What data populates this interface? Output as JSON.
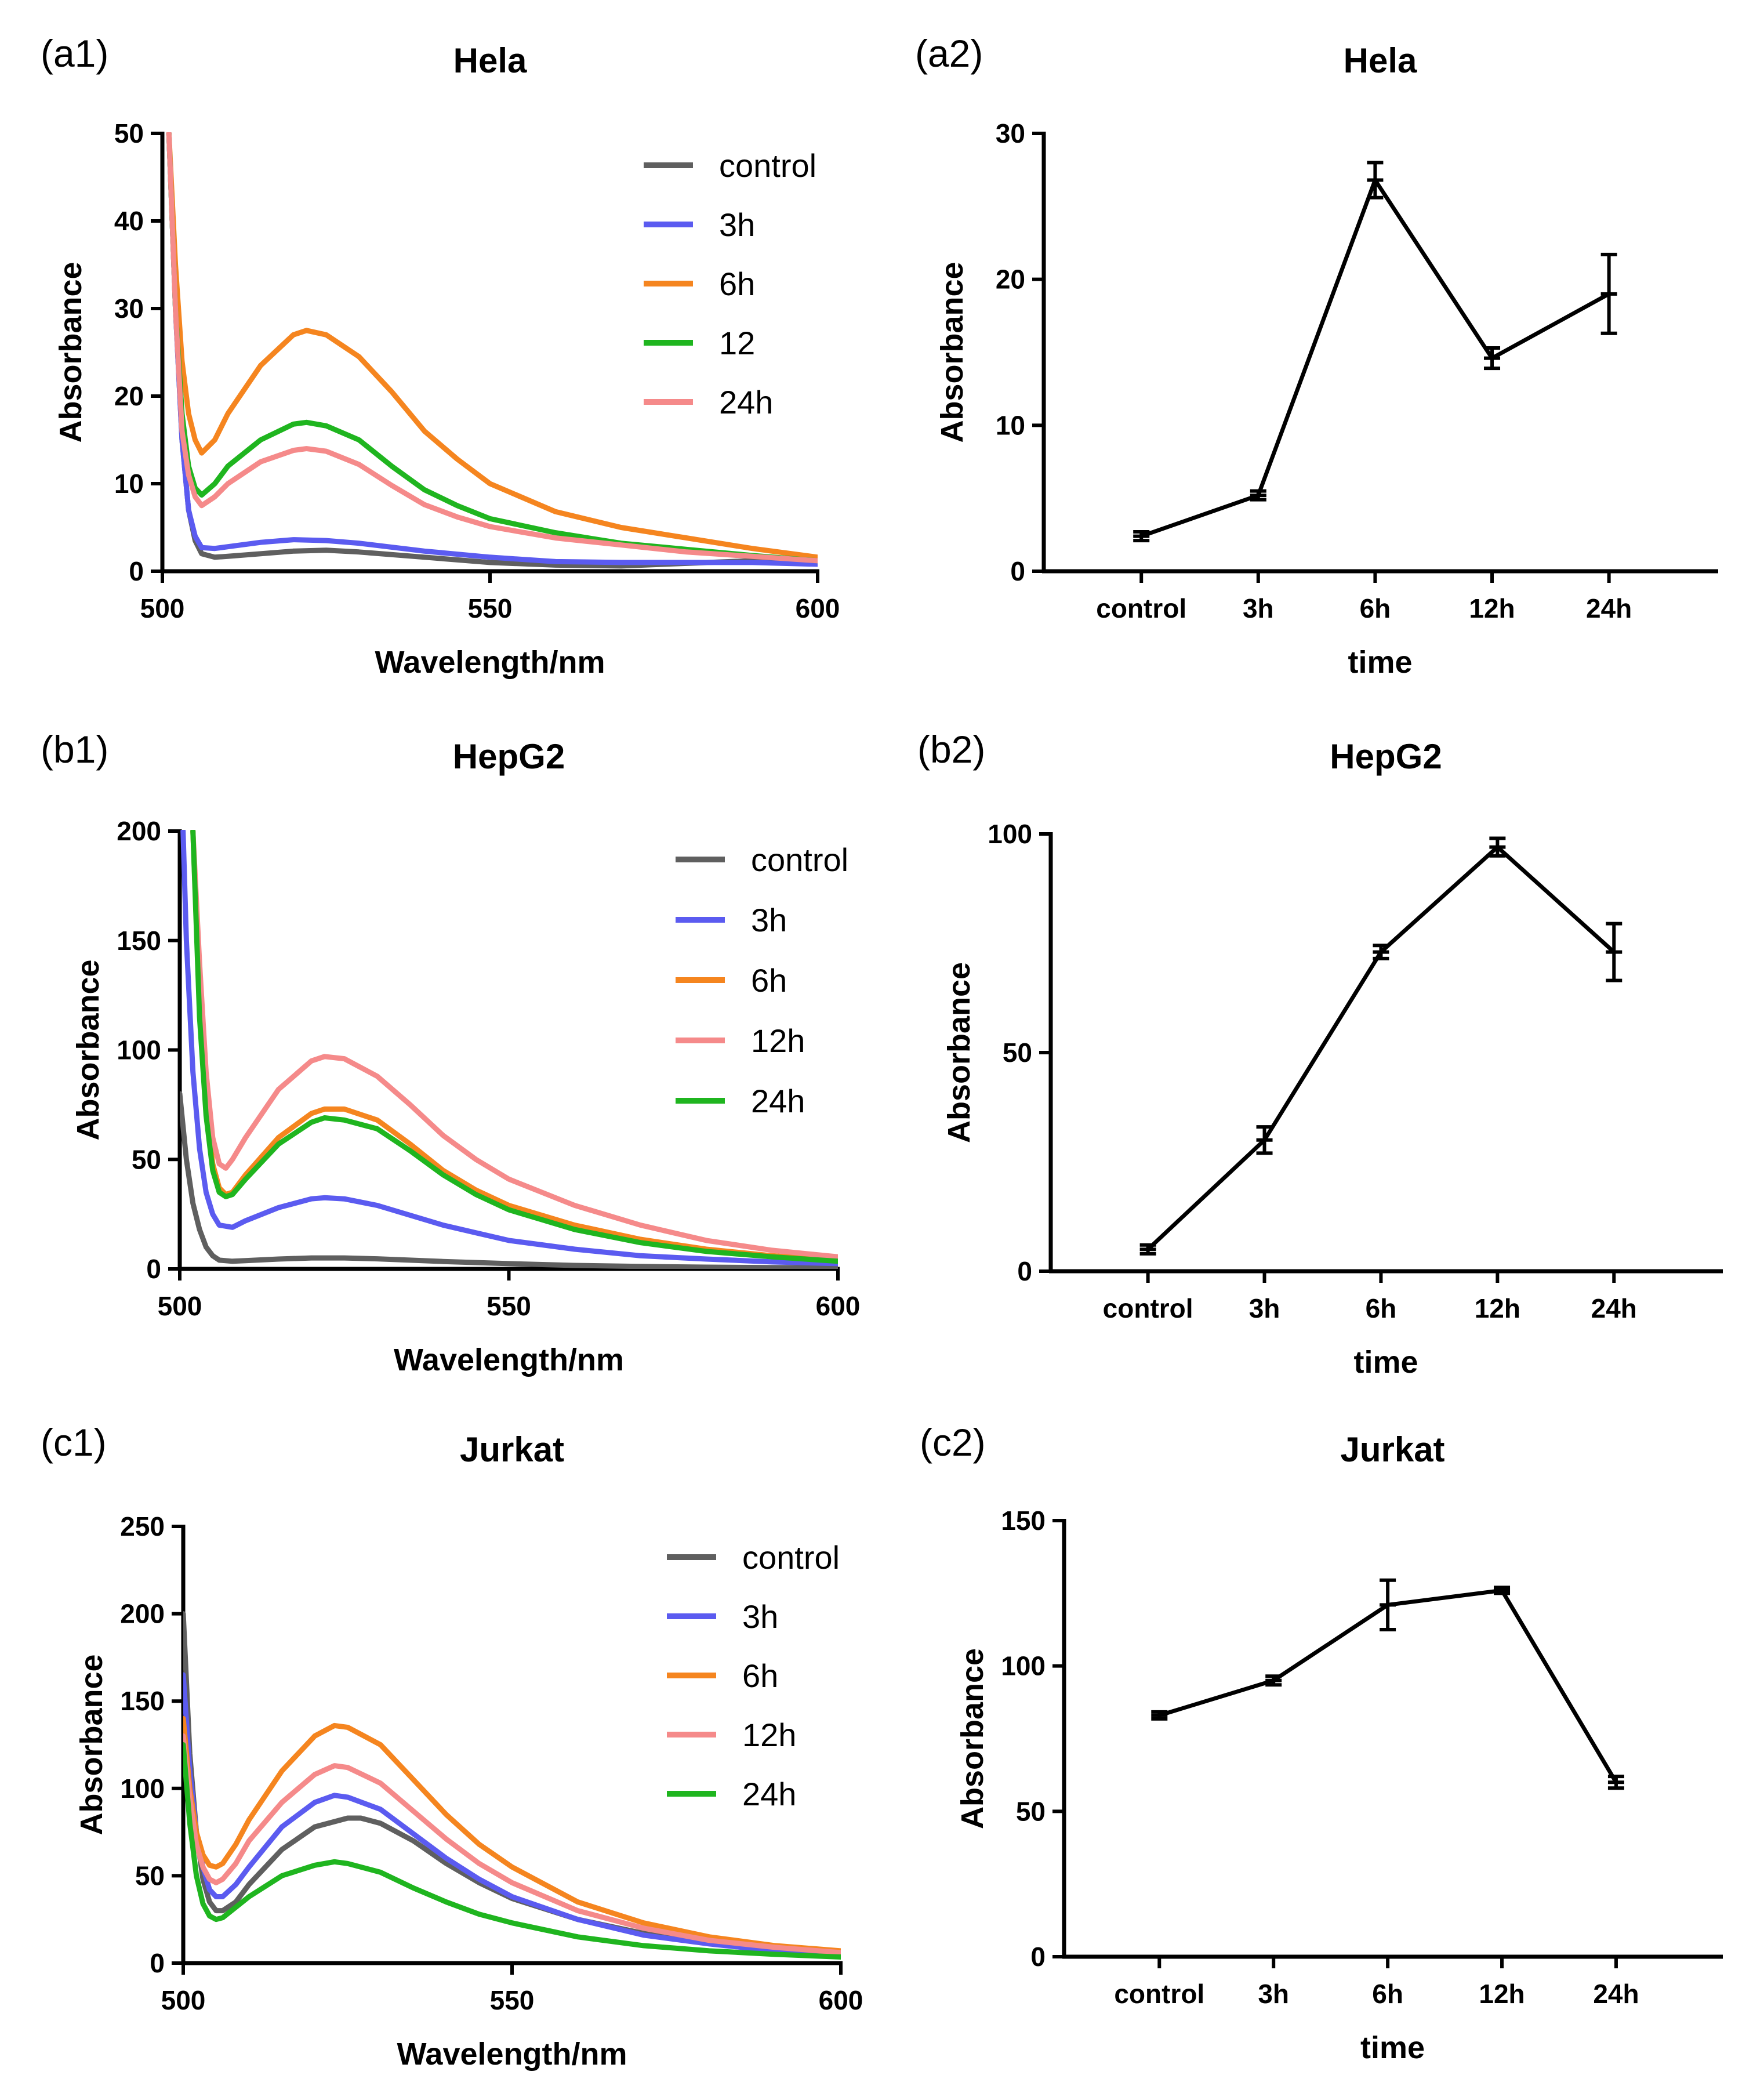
{
  "chart_data": [
    {
      "id": "a1",
      "panel_label": "(a1)",
      "type": "line",
      "title": "Hela",
      "xlabel": "Wavelength/nm",
      "ylabel": "Absorbance",
      "xlim": [
        500,
        600
      ],
      "ylim": [
        0,
        50
      ],
      "x_ticks": [
        500,
        550,
        600
      ],
      "y_ticks": [
        0,
        10,
        20,
        30,
        40,
        50
      ],
      "legend_position": "top-right",
      "series": [
        {
          "name": "control",
          "color": "#5f5f5f",
          "x": [
            501,
            502,
            503,
            504,
            505,
            506,
            508,
            510,
            515,
            520,
            525,
            530,
            540,
            550,
            560,
            570,
            580,
            590,
            600
          ],
          "y": [
            50,
            30,
            15,
            7,
            3.5,
            2,
            1.6,
            1.7,
            2,
            2.3,
            2.4,
            2.2,
            1.6,
            1.0,
            0.7,
            0.6,
            0.9,
            1.2,
            0.9
          ]
        },
        {
          "name": "3h",
          "color": "#5b5bf0",
          "x": [
            501,
            502,
            503,
            504,
            505,
            506,
            508,
            510,
            515,
            520,
            525,
            530,
            540,
            550,
            560,
            570,
            580,
            590,
            600
          ],
          "y": [
            50,
            30,
            15,
            7,
            4,
            2.7,
            2.6,
            2.8,
            3.3,
            3.6,
            3.5,
            3.2,
            2.3,
            1.6,
            1.1,
            1.0,
            1.0,
            1.0,
            0.8
          ]
        },
        {
          "name": "6h",
          "color": "#f5851f",
          "x": [
            501,
            502,
            503,
            504,
            505,
            506,
            508,
            510,
            515,
            520,
            522,
            525,
            530,
            535,
            540,
            545,
            550,
            560,
            570,
            580,
            590,
            600
          ],
          "y": [
            50,
            35,
            24,
            18,
            15,
            13.5,
            15,
            18,
            23.5,
            27,
            27.5,
            27,
            24.5,
            20.5,
            16,
            12.8,
            10,
            6.8,
            5,
            3.8,
            2.6,
            1.6
          ]
        },
        {
          "name": "12",
          "color": "#1fb51f",
          "x": [
            501,
            502,
            503,
            504,
            505,
            506,
            508,
            510,
            515,
            520,
            522,
            525,
            530,
            535,
            540,
            545,
            550,
            560,
            570,
            580,
            590,
            600
          ],
          "y": [
            50,
            30,
            18,
            12,
            9.5,
            8.7,
            10,
            12,
            15,
            16.8,
            17,
            16.6,
            15,
            12,
            9.3,
            7.5,
            6,
            4.4,
            3.2,
            2.5,
            1.8,
            1.2
          ]
        },
        {
          "name": "24h",
          "color": "#f58a8a",
          "x": [
            501,
            502,
            503,
            504,
            505,
            506,
            508,
            510,
            515,
            520,
            522,
            525,
            530,
            535,
            540,
            545,
            550,
            560,
            570,
            580,
            590,
            600
          ],
          "y": [
            50,
            30,
            16,
            11,
            8.5,
            7.5,
            8.5,
            10,
            12.5,
            13.8,
            14,
            13.7,
            12.2,
            9.8,
            7.6,
            6.2,
            5.1,
            3.8,
            3,
            2.2,
            1.7,
            1.2
          ]
        }
      ]
    },
    {
      "id": "a2",
      "panel_label": "(a2)",
      "type": "line",
      "title": "Hela",
      "xlabel": "time",
      "ylabel": "Absorbance",
      "categories": [
        "control",
        "3h",
        "6h",
        "12h",
        "24h"
      ],
      "ylim": [
        0,
        30
      ],
      "y_ticks": [
        0,
        10,
        20,
        30
      ],
      "values": [
        2.4,
        5.2,
        26.8,
        14.6,
        19.0
      ],
      "errors": [
        0.3,
        0.3,
        1.2,
        0.7,
        2.7
      ],
      "color": "#000000"
    },
    {
      "id": "b1",
      "panel_label": "(b1)",
      "type": "line",
      "title": "HepG2",
      "xlabel": "Wavelength/nm",
      "ylabel": "Absorbance",
      "xlim": [
        500,
        600
      ],
      "ylim": [
        0,
        200
      ],
      "x_ticks": [
        500,
        550,
        600
      ],
      "y_ticks": [
        0,
        50,
        100,
        150,
        200
      ],
      "legend_position": "top-right",
      "series": [
        {
          "name": "control",
          "color": "#5f5f5f",
          "x": [
            500,
            501,
            502,
            503,
            504,
            505,
            506,
            508,
            510,
            515,
            520,
            525,
            530,
            540,
            550,
            560,
            570,
            580,
            590,
            600
          ],
          "y": [
            80,
            50,
            30,
            18,
            10,
            6,
            4,
            3.5,
            3.8,
            4.5,
            5,
            5,
            4.6,
            3.4,
            2.4,
            1.6,
            1.1,
            0.8,
            0.6,
            0.5
          ]
        },
        {
          "name": "3h",
          "color": "#5b5bf0",
          "x": [
            500.5,
            501,
            502,
            503,
            504,
            505,
            506,
            508,
            510,
            515,
            520,
            522,
            525,
            530,
            535,
            540,
            545,
            550,
            560,
            570,
            580,
            590,
            600
          ],
          "y": [
            200,
            150,
            90,
            55,
            35,
            25,
            20,
            19,
            22,
            28,
            32,
            32.5,
            32,
            29,
            24.5,
            20,
            16.5,
            13,
            9,
            6,
            4.5,
            3.2,
            2.4
          ]
        },
        {
          "name": "6h",
          "color": "#f5851f",
          "x": [
            502,
            503,
            504,
            505,
            506,
            507,
            508,
            510,
            515,
            520,
            522,
            525,
            530,
            535,
            540,
            545,
            550,
            560,
            570,
            580,
            590,
            600
          ],
          "y": [
            200,
            120,
            75,
            48,
            37,
            34,
            35,
            43,
            60,
            71,
            73,
            73,
            68,
            57,
            45,
            36,
            29,
            20,
            13.5,
            9,
            6,
            4
          ]
        },
        {
          "name": "12h",
          "color": "#f58a8a",
          "x": [
            502,
            503,
            504,
            505,
            506,
            507,
            508,
            510,
            515,
            520,
            522,
            525,
            530,
            535,
            540,
            545,
            550,
            560,
            570,
            580,
            590,
            600
          ],
          "y": [
            200,
            140,
            90,
            60,
            48,
            46,
            50,
            60,
            82,
            95,
            97,
            96,
            88,
            75,
            61,
            50,
            41,
            29,
            20,
            13,
            8.5,
            5.5
          ]
        },
        {
          "name": "24h",
          "color": "#1fb51f",
          "x": [
            502,
            503,
            504,
            505,
            506,
            507,
            508,
            510,
            515,
            520,
            522,
            525,
            530,
            535,
            540,
            545,
            550,
            560,
            570,
            580,
            590,
            600
          ],
          "y": [
            200,
            115,
            70,
            45,
            35,
            33,
            34,
            41,
            57,
            67,
            69,
            68,
            64,
            54,
            43,
            34,
            27,
            18,
            12,
            8,
            5.5,
            3.5
          ]
        }
      ]
    },
    {
      "id": "b2",
      "panel_label": "(b2)",
      "type": "line",
      "title": "HepG2",
      "xlabel": "time",
      "ylabel": "Absorbance",
      "categories": [
        "control",
        "3h",
        "6h",
        "12h",
        "24h"
      ],
      "ylim": [
        0,
        100
      ],
      "y_ticks": [
        0,
        50,
        100
      ],
      "values": [
        5,
        30,
        73,
        97,
        73
      ],
      "errors": [
        1,
        3,
        1.5,
        2,
        6.5
      ],
      "color": "#000000"
    },
    {
      "id": "c1",
      "panel_label": "(c1)",
      "type": "line",
      "title": "Jurkat",
      "xlabel": "Wavelength/nm",
      "ylabel": "Absorbance",
      "xlim": [
        500,
        600
      ],
      "ylim": [
        0,
        250
      ],
      "x_ticks": [
        500,
        550,
        600
      ],
      "y_ticks": [
        0,
        50,
        100,
        150,
        200,
        250
      ],
      "legend_position": "top-right",
      "series": [
        {
          "name": "control",
          "color": "#5f5f5f",
          "x": [
            500,
            501,
            502,
            503,
            504,
            505,
            506,
            508,
            510,
            515,
            520,
            525,
            527,
            530,
            535,
            540,
            545,
            550,
            560,
            570,
            580,
            590,
            600
          ],
          "y": [
            200,
            120,
            75,
            48,
            35,
            30,
            30,
            35,
            45,
            65,
            78,
            83,
            83,
            80,
            70,
            57,
            46,
            37,
            25,
            17,
            12,
            8,
            5
          ]
        },
        {
          "name": "3h",
          "color": "#5b5bf0",
          "x": [
            500,
            501,
            502,
            503,
            504,
            505,
            506,
            508,
            510,
            515,
            520,
            523,
            525,
            530,
            535,
            540,
            545,
            550,
            560,
            570,
            580,
            590,
            600
          ],
          "y": [
            165,
            110,
            75,
            55,
            42,
            38,
            38,
            45,
            55,
            78,
            92,
            96,
            95,
            88,
            74,
            60,
            48,
            38,
            25,
            16,
            11,
            7,
            4.5
          ]
        },
        {
          "name": "6h",
          "color": "#f5851f",
          "x": [
            500,
            501,
            502,
            503,
            504,
            505,
            506,
            508,
            510,
            515,
            520,
            523,
            525,
            530,
            535,
            540,
            545,
            550,
            560,
            570,
            580,
            590,
            600
          ],
          "y": [
            140,
            100,
            75,
            62,
            56,
            55,
            57,
            68,
            82,
            110,
            130,
            136,
            135,
            125,
            105,
            85,
            68,
            55,
            35,
            23,
            15,
            10,
            7
          ]
        },
        {
          "name": "12h",
          "color": "#f58a8a",
          "x": [
            500,
            501,
            502,
            503,
            504,
            505,
            506,
            508,
            510,
            515,
            520,
            523,
            525,
            530,
            535,
            540,
            545,
            550,
            560,
            570,
            580,
            590,
            600
          ],
          "y": [
            130,
            95,
            68,
            55,
            48,
            46,
            48,
            57,
            70,
            92,
            108,
            113,
            112,
            103,
            87,
            71,
            57,
            46,
            30,
            20,
            13,
            9,
            6
          ]
        },
        {
          "name": "24h",
          "color": "#1fb51f",
          "x": [
            500,
            501,
            502,
            503,
            504,
            505,
            506,
            508,
            510,
            515,
            520,
            523,
            525,
            530,
            535,
            540,
            545,
            550,
            560,
            570,
            580,
            590,
            600
          ],
          "y": [
            125,
            80,
            50,
            34,
            27,
            25,
            26,
            32,
            38,
            50,
            56,
            58,
            57,
            52,
            43,
            35,
            28,
            23,
            15,
            10,
            7,
            5,
            3.5
          ]
        }
      ]
    },
    {
      "id": "c2",
      "panel_label": "(c2)",
      "type": "line",
      "title": "Jurkat",
      "xlabel": "time",
      "ylabel": "Absorbance",
      "categories": [
        "control",
        "3h",
        "6h",
        "12h",
        "24h"
      ],
      "ylim": [
        0,
        150
      ],
      "y_ticks": [
        0,
        50,
        100,
        150
      ],
      "values": [
        83,
        95,
        121,
        126,
        60
      ],
      "errors": [
        1.2,
        1.5,
        8.5,
        1,
        2
      ],
      "color": "#000000"
    }
  ]
}
